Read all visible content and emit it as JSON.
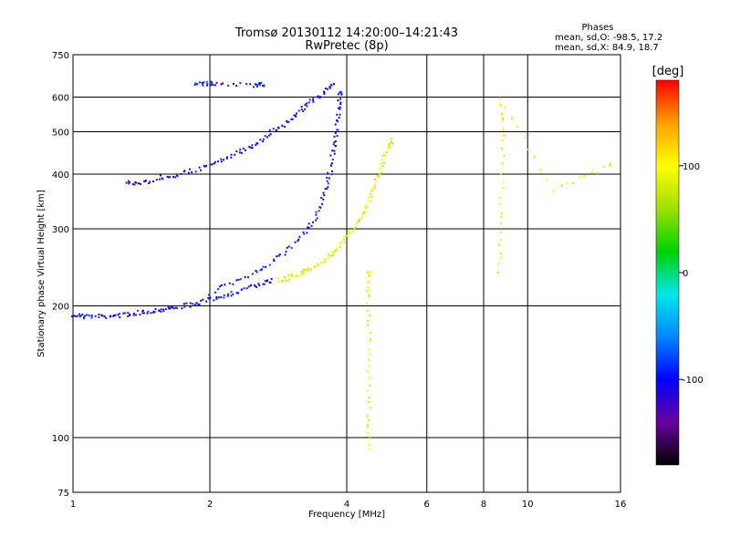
{
  "chart_data": {
    "type": "scatter",
    "title": "Tromsø 20130112 14:20:00–14:21:43",
    "subtitle": "RwPretec (8p)",
    "xlabel": "Frequency [MHz]",
    "ylabel": "Stationary phase Virtual Height [km]",
    "x_scale": "log",
    "y_scale": "log",
    "xlim": [
      1,
      16
    ],
    "ylim": [
      75,
      750
    ],
    "x_ticks": [
      "1",
      "2",
      "4",
      "6",
      "8",
      "10",
      "16"
    ],
    "y_ticks": [
      "75",
      "100",
      "200",
      "300",
      "400",
      "500",
      "600",
      "750"
    ],
    "grid": true,
    "phases_box": {
      "title": "Phases",
      "line_o": "mean, sd,O: -98.5, 17.2",
      "line_x": "mean, sd,X: 84.9, 18.7"
    },
    "colorbar": {
      "label": "[deg]",
      "range": [
        -180,
        180
      ],
      "ticks": [
        "100",
        "0",
        "-100"
      ],
      "colors": [
        "#000000",
        "#6a00a0",
        "#0000ff",
        "#0088ff",
        "#00e8e8",
        "#00d000",
        "#a0e000",
        "#ffff00",
        "#ffa000",
        "#ff0000"
      ]
    },
    "traces": [
      {
        "phase": -105,
        "points": [
          [
            1.0,
            192
          ],
          [
            1.05,
            190
          ],
          [
            1.15,
            190
          ],
          [
            1.25,
            191
          ],
          [
            1.35,
            193
          ],
          [
            1.45,
            195
          ],
          [
            1.55,
            197
          ],
          [
            1.65,
            199
          ],
          [
            1.8,
            202
          ],
          [
            1.95,
            206
          ],
          [
            2.1,
            211
          ],
          [
            2.3,
            217
          ],
          [
            2.5,
            223
          ],
          [
            2.7,
            229
          ]
        ]
      },
      {
        "phase": 90,
        "points": [
          [
            2.8,
            230
          ],
          [
            3.0,
            234
          ],
          [
            3.2,
            240
          ],
          [
            3.4,
            248
          ],
          [
            3.6,
            258
          ],
          [
            3.8,
            272
          ],
          [
            4.0,
            290
          ],
          [
            4.2,
            312
          ],
          [
            4.4,
            340
          ],
          [
            4.55,
            370
          ],
          [
            4.7,
            405
          ],
          [
            4.85,
            450
          ],
          [
            5.0,
            480
          ]
        ]
      },
      {
        "phase": -100,
        "points": [
          [
            2.0,
            215
          ],
          [
            2.3,
            230
          ],
          [
            2.6,
            245
          ],
          [
            2.9,
            265
          ],
          [
            3.2,
            290
          ],
          [
            3.4,
            320
          ],
          [
            3.55,
            360
          ],
          [
            3.65,
            400
          ],
          [
            3.72,
            450
          ],
          [
            3.78,
            500
          ],
          [
            3.82,
            560
          ],
          [
            3.85,
            620
          ]
        ]
      },
      {
        "phase": -110,
        "points": [
          [
            1.3,
            385
          ],
          [
            1.4,
            382
          ],
          [
            1.55,
            395
          ],
          [
            1.7,
            400
          ],
          [
            1.9,
            415
          ],
          [
            2.1,
            430
          ],
          [
            2.3,
            450
          ],
          [
            2.5,
            470
          ],
          [
            2.7,
            500
          ],
          [
            2.9,
            520
          ],
          [
            3.1,
            555
          ],
          [
            3.3,
            585
          ],
          [
            3.5,
            610
          ],
          [
            3.7,
            640
          ]
        ]
      },
      {
        "phase": -95,
        "points": [
          [
            1.85,
            650
          ],
          [
            1.95,
            648
          ],
          [
            2.05,
            645
          ],
          [
            2.5,
            640
          ],
          [
            2.6,
            645
          ]
        ]
      },
      {
        "phase": 95,
        "points": [
          [
            4.45,
            95
          ],
          [
            4.45,
            120
          ],
          [
            4.45,
            160
          ],
          [
            4.45,
            210
          ],
          [
            4.45,
            240
          ]
        ]
      },
      {
        "phase": 100,
        "points": [
          [
            8.6,
            240
          ],
          [
            8.7,
            330
          ],
          [
            8.8,
            480
          ],
          [
            8.6,
            600
          ],
          [
            11.4,
            370
          ],
          [
            15.0,
            420
          ]
        ]
      }
    ]
  }
}
